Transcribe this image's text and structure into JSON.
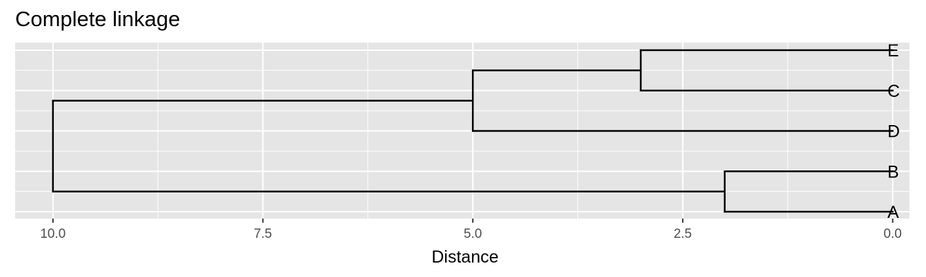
{
  "chart_data": {
    "type": "dendrogram",
    "title": "Complete linkage",
    "xlabel": "Distance",
    "ylabel": "",
    "x_reversed": true,
    "xlim": [
      10.45,
      -0.2
    ],
    "x_ticks": [
      10.0,
      7.5,
      5.0,
      2.5,
      0.0
    ],
    "x_tick_labels": [
      "10.0",
      "7.5",
      "5.0",
      "2.5",
      "0.0"
    ],
    "grid": true,
    "leaves": [
      "E",
      "C",
      "D",
      "B",
      "A"
    ],
    "merges": [
      {
        "left": "E",
        "right": "C",
        "height": 3.0
      },
      {
        "left": "B",
        "right": "A",
        "height": 2.0
      },
      {
        "left": "E+C",
        "right": "D",
        "height": 5.0
      },
      {
        "left": "E+C+D",
        "right": "B+A",
        "height": 10.0
      }
    ],
    "colors": {
      "panel_background": "#e5e5e5",
      "grid": "#ffffff",
      "line": "#000000"
    }
  }
}
